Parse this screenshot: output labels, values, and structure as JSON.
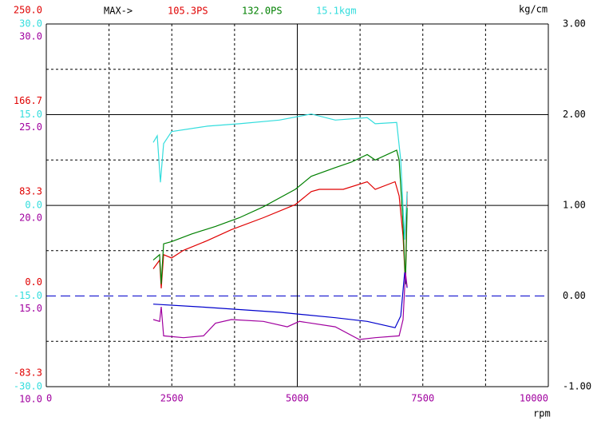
{
  "chart_data": {
    "type": "line",
    "header": {
      "prefix": "MAX->",
      "items": [
        {
          "text": "105.3PS",
          "color": "#e00000"
        },
        {
          "text": "132.0PS",
          "color": "#008000"
        },
        {
          "text": "15.1kgm",
          "color": "#33dddd"
        }
      ]
    },
    "y2_unit": "kg/cm",
    "x_unit": "rpm",
    "xlim": [
      0,
      10000
    ],
    "xticks": [
      0,
      2500,
      5000,
      7500,
      10000
    ],
    "ylim": [
      -83.3,
      250
    ],
    "y_color": "#e00000",
    "yticks": [
      {
        "value": 250,
        "label": "250.0"
      },
      {
        "value": 166.7,
        "label": "166.7"
      },
      {
        "value": 83.3,
        "label": "83.3"
      },
      {
        "value": 0,
        "label": "0.0"
      },
      {
        "value": -83.3,
        "label": "-83.3"
      }
    ],
    "y3lim": [
      -30,
      30
    ],
    "y3_color": "#33dddd",
    "y3ticks": [
      {
        "value": 30,
        "label": "30.0"
      },
      {
        "value": 15,
        "label": "15.0"
      },
      {
        "value": 0,
        "label": "0.0"
      },
      {
        "value": -15,
        "label": "-15.0"
      },
      {
        "value": -30,
        "label": "-30.0"
      }
    ],
    "y4lim": [
      10,
      30
    ],
    "y4_color": "#a0009f",
    "y4ticks": [
      {
        "value": 30,
        "label": "30.0"
      },
      {
        "value": 25,
        "label": "25.0"
      },
      {
        "value": 20,
        "label": "20.0"
      },
      {
        "value": 15,
        "label": "15.0"
      },
      {
        "value": 10,
        "label": "10.0"
      }
    ],
    "y2lim": [
      -1,
      3
    ],
    "y2ticks": [
      {
        "value": 3,
        "label": "3.00"
      },
      {
        "value": 2,
        "label": "2.00"
      },
      {
        "value": 1,
        "label": "1.00"
      },
      {
        "value": 0,
        "label": "0.00"
      },
      {
        "value": -1,
        "label": "-1.00"
      }
    ],
    "series": [
      {
        "color": "#e00000",
        "axis": "y",
        "x": [
          2130,
          2258,
          2290,
          2337,
          2496,
          2735,
          3212,
          3689,
          4325,
          4961,
          5279,
          5438,
          5915,
          6392,
          6551,
          6948,
          7028,
          7107,
          7155,
          7187
        ],
        "values": [
          25,
          33,
          7,
          38,
          35,
          42,
          51,
          61,
          72,
          84,
          96,
          98,
          98,
          105,
          98,
          105,
          92,
          55,
          11,
          96
        ]
      },
      {
        "color": "#008000",
        "axis": "y",
        "x": [
          2130,
          2258,
          2290,
          2337,
          2496,
          2894,
          3371,
          3848,
          4325,
          4961,
          5279,
          5756,
          6074,
          6392,
          6551,
          6980,
          7028,
          7107,
          7155,
          7187
        ],
        "values": [
          33,
          38,
          11,
          48,
          50,
          57,
          64,
          72,
          82,
          98,
          110,
          118,
          123,
          130,
          125,
          134,
          125,
          66,
          11,
          81
        ]
      },
      {
        "color": "#33dddd",
        "axis": "y3",
        "x": [
          2130,
          2210,
          2274,
          2337,
          2496,
          3212,
          3848,
          4643,
          5279,
          5756,
          6392,
          6551,
          6980,
          7060,
          7139,
          7187
        ],
        "values": [
          10.4,
          11.5,
          3.8,
          10.2,
          12.2,
          13.1,
          13.5,
          14.1,
          15.1,
          14.1,
          14.5,
          13.5,
          13.7,
          7.5,
          -5.7,
          2.2
        ]
      },
      {
        "color": "#0000cc",
        "axis": "y2",
        "x": [
          2130,
          3053,
          4643,
          5756,
          6392,
          6948,
          7060,
          7139,
          7187
        ],
        "values": [
          -0.09,
          -0.12,
          -0.18,
          -0.24,
          -0.28,
          -0.35,
          -0.22,
          0.26,
          0.09
        ]
      },
      {
        "color": "#a0009f",
        "axis": "y4",
        "x": [
          2130,
          2258,
          2290,
          2337,
          2735,
          3132,
          3371,
          3689,
          4325,
          4802,
          5040,
          5756,
          6233,
          6551,
          7028,
          7107,
          7155,
          7187
        ],
        "values": [
          13.7,
          13.6,
          14.4,
          12.8,
          12.7,
          12.8,
          13.5,
          13.7,
          13.6,
          13.3,
          13.6,
          13.3,
          12.6,
          12.7,
          12.8,
          13.7,
          16.3,
          15.5
        ]
      }
    ]
  }
}
